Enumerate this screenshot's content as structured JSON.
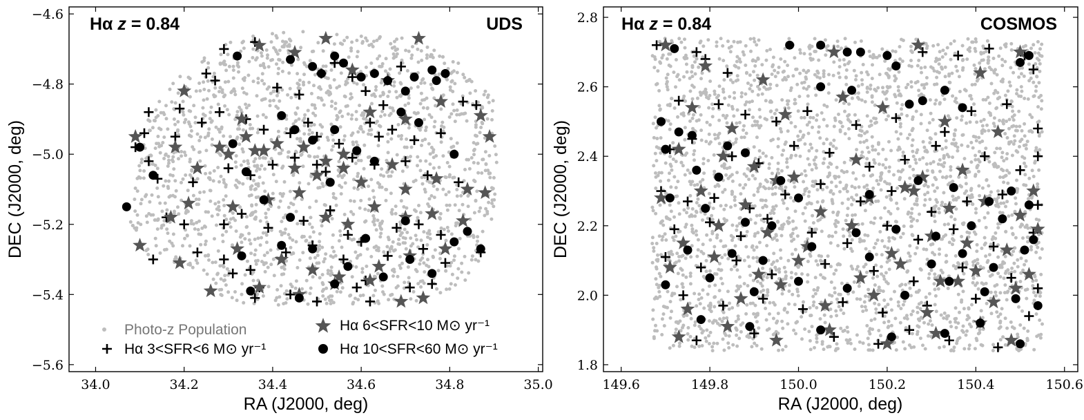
{
  "colors": {
    "photoz": "#bdbdbd",
    "star": "#555555",
    "black": "#000000"
  },
  "chart_data": [
    {
      "type": "scatter",
      "id": "uds",
      "field_label": "UDS",
      "title_prefix": "Hα ",
      "title_z": "z",
      "title_value": " = 0.84",
      "xlabel": "RA (J2000, deg)",
      "ylabel": "DEC (J2000, deg)",
      "xlim": [
        33.94,
        35.01
      ],
      "ylim": [
        -5.62,
        -4.58
      ],
      "xticks": [
        34.0,
        34.2,
        34.4,
        34.6,
        34.8,
        35.0
      ],
      "yticks": [
        -4.6,
        -4.8,
        -5.0,
        -5.2,
        -5.4,
        -5.6
      ],
      "xtick_labels": [
        "34.0",
        "34.2",
        "34.4",
        "34.6",
        "34.8",
        "35.0"
      ],
      "ytick_labels": [
        "−4.6",
        "−4.8",
        "−5.0",
        "−5.2",
        "−5.4",
        "−5.6"
      ],
      "footprint": {
        "ra": [
          34.08,
          34.12,
          34.2,
          34.3,
          34.4,
          34.55,
          34.7,
          34.82,
          34.9,
          34.91,
          34.89,
          34.85,
          34.78,
          34.7,
          34.55,
          34.4,
          34.27,
          34.26,
          34.2,
          34.1,
          34.07
        ],
        "dec": [
          -5.15,
          -4.88,
          -4.75,
          -4.68,
          -4.65,
          -4.65,
          -4.67,
          -4.73,
          -4.85,
          -5.05,
          -5.25,
          -5.35,
          -5.4,
          -5.43,
          -5.43,
          -5.43,
          -5.43,
          -5.35,
          -5.32,
          -5.28,
          -5.2
        ]
      },
      "photoz_count": 1800,
      "series": [
        {
          "name": "Hα 3<SFR<6 M⊙ yr⁻¹",
          "marker": "plus",
          "ra": [
            34.29,
            34.36,
            34.25,
            34.27,
            34.41,
            34.46,
            34.51,
            34.54,
            34.58,
            34.61,
            34.65,
            34.69,
            34.12,
            34.11,
            34.09,
            34.19,
            34.18,
            34.24,
            34.28,
            34.34,
            34.38,
            34.44,
            34.48,
            34.5,
            34.55,
            34.62,
            34.64,
            34.67,
            34.72,
            34.78,
            34.83,
            34.86,
            34.12,
            34.14,
            34.22,
            34.3,
            34.35,
            34.4,
            34.45,
            34.5,
            34.52,
            34.58,
            34.63,
            34.7,
            34.75,
            34.82,
            34.16,
            34.2,
            34.29,
            34.33,
            34.39,
            34.47,
            34.53,
            34.57,
            34.68,
            34.73,
            34.78,
            34.23,
            34.29,
            34.35,
            34.43,
            34.49,
            34.56,
            34.6,
            34.66,
            34.74,
            34.79,
            34.13,
            34.31,
            34.37,
            34.5,
            34.61,
            34.71,
            34.87,
            34.36,
            34.44,
            34.59,
            34.76,
            34.62
          ],
          "dec": [
            -4.7,
            -4.68,
            -4.77,
            -4.79,
            -4.81,
            -4.83,
            -4.77,
            -4.74,
            -4.78,
            -4.82,
            -4.86,
            -4.75,
            -4.88,
            -4.94,
            -4.98,
            -4.87,
            -4.95,
            -4.91,
            -4.88,
            -4.9,
            -4.93,
            -4.94,
            -4.91,
            -4.95,
            -4.97,
            -4.91,
            -4.95,
            -4.93,
            -4.96,
            -4.94,
            -4.85,
            -4.86,
            -5.02,
            -5.07,
            -5.08,
            -5.04,
            -5.06,
            -5.03,
            -5.01,
            -5.03,
            -5.05,
            -5.01,
            -5.03,
            -5.02,
            -5.06,
            -5.08,
            -5.18,
            -5.2,
            -5.2,
            -5.17,
            -5.21,
            -5.19,
            -5.16,
            -5.23,
            -5.21,
            -5.2,
            -5.23,
            -5.28,
            -5.3,
            -5.33,
            -5.28,
            -5.26,
            -5.3,
            -5.25,
            -5.29,
            -5.27,
            -5.31,
            -5.3,
            -5.34,
            -5.38,
            -5.42,
            -5.36,
            -5.38,
            -5.28,
            -5.41,
            -5.4,
            -5.38,
            -5.37,
            -5.42
          ]
        },
        {
          "name": "Hα 6<SFR<10 M⊙ yr⁻¹",
          "marker": "star",
          "ra": [
            34.37,
            34.45,
            34.52,
            34.73,
            34.66,
            34.58,
            34.2,
            34.33,
            34.28,
            34.34,
            34.36,
            34.41,
            34.47,
            34.52,
            34.56,
            34.62,
            34.7,
            34.78,
            34.87,
            34.89,
            34.09,
            34.18,
            34.23,
            34.3,
            34.38,
            34.45,
            34.5,
            34.6,
            34.67,
            34.77,
            34.84,
            34.1,
            34.17,
            34.21,
            34.31,
            34.39,
            34.46,
            34.52,
            34.57,
            34.63,
            34.7,
            34.76,
            34.83,
            34.88,
            34.19,
            34.32,
            34.42,
            34.49,
            34.55,
            34.64,
            34.71,
            34.79,
            34.26,
            34.37,
            34.46,
            34.54,
            34.62,
            34.69,
            34.74,
            34.56,
            34.7
          ],
          "dec": [
            -4.69,
            -4.71,
            -4.67,
            -4.67,
            -4.79,
            -4.76,
            -4.82,
            -4.9,
            -4.98,
            -4.95,
            -4.99,
            -4.97,
            -4.98,
            -5.02,
            -5.0,
            -4.88,
            -4.9,
            -4.85,
            -4.89,
            -4.95,
            -4.95,
            -4.98,
            -5.04,
            -5.0,
            -4.99,
            -5.04,
            -5.06,
            -5.08,
            -5.03,
            -5.07,
            -5.1,
            -5.26,
            -5.18,
            -5.14,
            -5.15,
            -5.13,
            -5.11,
            -5.18,
            -5.2,
            -5.15,
            -5.1,
            -5.17,
            -5.19,
            -5.11,
            -5.31,
            -5.27,
            -5.3,
            -5.33,
            -5.35,
            -5.32,
            -5.29,
            -5.27,
            -5.39,
            -5.38,
            -5.4,
            -5.37,
            -5.36,
            -5.42,
            -5.41,
            -5.04,
            -5.18
          ]
        },
        {
          "name": "Hα 10<SFR<60 M⊙ yr⁻¹",
          "marker": "circle",
          "ra": [
            34.32,
            34.44,
            34.49,
            34.51,
            34.54,
            34.56,
            34.6,
            34.63,
            34.66,
            34.7,
            34.72,
            34.76,
            34.77,
            34.79,
            34.1,
            34.13,
            34.07,
            34.31,
            34.34,
            34.42,
            34.45,
            34.49,
            34.54,
            34.59,
            34.63,
            34.69,
            34.73,
            34.81,
            34.38,
            34.44,
            34.53,
            34.61,
            34.7,
            34.84,
            34.87,
            34.33,
            34.42,
            34.49,
            34.57,
            34.65,
            34.71,
            34.76,
            34.81,
            34.35,
            34.46,
            34.54
          ],
          "dec": [
            -4.72,
            -4.73,
            -4.75,
            -4.77,
            -4.72,
            -4.74,
            -4.78,
            -4.77,
            -4.79,
            -4.82,
            -4.78,
            -4.76,
            -4.79,
            -4.77,
            -4.98,
            -5.06,
            -5.15,
            -4.97,
            -5.05,
            -4.89,
            -4.93,
            -4.96,
            -4.93,
            -4.99,
            -5.02,
            -4.88,
            -4.91,
            -5.0,
            -5.13,
            -5.18,
            -5.08,
            -5.24,
            -5.19,
            -5.22,
            -5.27,
            -5.29,
            -5.26,
            -5.27,
            -5.32,
            -5.35,
            -5.3,
            -5.34,
            -5.25,
            -5.39,
            -5.41,
            -5.37
          ]
        },
        {
          "name": "Photo-z Population",
          "marker": "dot"
        }
      ]
    },
    {
      "type": "scatter",
      "id": "cosmos",
      "field_label": "COSMOS",
      "title_prefix": "Hα ",
      "title_z": "z",
      "title_value": " = 0.84",
      "xlabel": "RA (J2000, deg)",
      "ylabel": "DEC (J2000, deg)",
      "xlim": [
        149.56,
        150.63
      ],
      "ylim": [
        1.78,
        2.83
      ],
      "xticks": [
        149.6,
        149.8,
        150.0,
        150.2,
        150.4,
        150.6
      ],
      "yticks": [
        1.8,
        2.0,
        2.2,
        2.4,
        2.6,
        2.8
      ],
      "xtick_labels": [
        "149.6",
        "149.8",
        "150.0",
        "150.2",
        "150.4",
        "150.6"
      ],
      "ytick_labels": [
        "1.8",
        "2.0",
        "2.2",
        "2.4",
        "2.6",
        "2.8"
      ],
      "footprint": {
        "ra": [
          149.67,
          150.55,
          150.55,
          149.67
        ],
        "dec": [
          1.84,
          1.84,
          2.74,
          2.74
        ]
      },
      "photoz_count": 2800,
      "series": [
        {
          "name": "Hα 3<SFR<6 M⊙ yr⁻¹",
          "marker": "plus",
          "ra": [
            149.68,
            149.77,
            149.79,
            149.84,
            150.28,
            150.36,
            150.43,
            150.51,
            150.53,
            149.73,
            149.82,
            149.88,
            149.95,
            150.02,
            150.13,
            150.22,
            150.33,
            150.39,
            150.47,
            150.54,
            149.71,
            149.76,
            149.85,
            149.91,
            149.99,
            150.07,
            150.16,
            150.24,
            150.31,
            150.42,
            150.5,
            150.54,
            149.69,
            149.75,
            149.81,
            149.89,
            149.97,
            150.05,
            150.14,
            150.21,
            150.3,
            150.38,
            150.46,
            150.54,
            149.72,
            149.8,
            149.87,
            149.93,
            150.03,
            150.11,
            150.2,
            150.27,
            150.35,
            150.44,
            150.53,
            149.7,
            149.78,
            149.86,
            149.94,
            150.06,
            150.17,
            150.26,
            150.37,
            150.48,
            150.54,
            149.74,
            149.83,
            149.92,
            150.01,
            150.1,
            150.19,
            150.29,
            150.4,
            150.52,
            149.77,
            149.9,
            150.08,
            150.18,
            150.25,
            150.34,
            150.45
          ],
          "dec": [
            2.72,
            2.7,
            2.68,
            2.64,
            2.7,
            2.69,
            2.71,
            2.69,
            2.65,
            2.56,
            2.55,
            2.52,
            2.5,
            2.53,
            2.49,
            2.51,
            2.47,
            2.53,
            2.55,
            2.48,
            2.42,
            2.45,
            2.4,
            2.38,
            2.43,
            2.41,
            2.37,
            2.39,
            2.43,
            2.4,
            2.36,
            2.4,
            2.3,
            2.27,
            2.28,
            2.25,
            2.29,
            2.32,
            2.27,
            2.3,
            2.24,
            2.27,
            2.29,
            2.26,
            2.19,
            2.21,
            2.17,
            2.22,
            2.18,
            2.15,
            2.2,
            2.16,
            2.19,
            2.14,
            2.18,
            2.11,
            2.08,
            2.1,
            2.06,
            2.09,
            2.07,
            2.04,
            2.08,
            2.05,
            2.02,
            2.0,
            1.97,
            1.99,
            1.96,
            1.98,
            1.95,
            1.97,
            1.99,
            1.94,
            1.87,
            1.89,
            1.88,
            1.86,
            1.9,
            1.87,
            1.85
          ]
        },
        {
          "name": "Hα 6<SFR<10 M⊙ yr⁻¹",
          "marker": "star",
          "ra": [
            149.7,
            149.79,
            149.92,
            150.08,
            150.27,
            150.41,
            150.5,
            149.76,
            149.85,
            149.97,
            150.1,
            150.19,
            150.33,
            150.45,
            149.73,
            149.83,
            149.9,
            149.99,
            150.13,
            150.24,
            150.28,
            150.37,
            150.53,
            149.69,
            149.78,
            149.88,
            149.95,
            150.05,
            150.16,
            150.26,
            150.34,
            150.42,
            150.5,
            149.74,
            149.82,
            149.93,
            150.02,
            150.12,
            150.21,
            150.3,
            150.38,
            150.47,
            150.54,
            149.71,
            149.81,
            149.91,
            150.0,
            150.14,
            150.23,
            150.32,
            150.4,
            150.49,
            149.75,
            149.87,
            149.96,
            150.06,
            150.17,
            150.29,
            150.36,
            150.44,
            150.52,
            149.73,
            149.84,
            149.95,
            150.07,
            150.2,
            150.31,
            150.41,
            150.48
          ],
          "dec": [
            2.72,
            2.66,
            2.62,
            2.7,
            2.72,
            2.64,
            2.7,
            2.54,
            2.48,
            2.52,
            2.57,
            2.54,
            2.5,
            2.47,
            2.42,
            2.4,
            2.37,
            2.34,
            2.39,
            2.31,
            2.34,
            2.36,
            2.3,
            2.28,
            2.3,
            2.26,
            2.33,
            2.24,
            2.28,
            2.3,
            2.25,
            2.27,
            2.23,
            2.15,
            2.2,
            2.18,
            2.14,
            2.2,
            2.12,
            2.17,
            2.15,
            2.13,
            2.19,
            2.08,
            2.11,
            2.06,
            2.1,
            2.05,
            2.09,
            2.04,
            2.07,
            2.02,
            1.96,
            1.99,
            2.03,
            1.97,
            2.0,
            1.95,
            2.04,
            1.98,
            2.06,
            1.88,
            1.91,
            1.87,
            1.9,
            1.86,
            1.89,
            1.92,
            1.87
          ]
        },
        {
          "name": "Hα 10<SFR<60 M⊙ yr⁻¹",
          "marker": "circle",
          "ra": [
            149.72,
            149.98,
            150.05,
            150.11,
            150.14,
            150.2,
            150.22,
            150.5,
            150.52,
            150.05,
            150.12,
            150.25,
            149.69,
            149.73,
            149.76,
            149.84,
            149.88,
            150.28,
            150.33,
            150.37,
            149.7,
            149.77,
            149.82,
            149.96,
            150.0,
            150.16,
            150.27,
            150.35,
            150.43,
            150.48,
            150.52,
            149.71,
            149.79,
            149.88,
            149.94,
            150.13,
            150.22,
            150.31,
            150.39,
            150.46,
            150.53,
            149.75,
            149.85,
            149.92,
            150.03,
            150.16,
            150.3,
            150.37,
            150.44,
            150.51,
            149.7,
            149.8,
            149.9,
            150.0,
            150.11,
            150.24,
            150.34,
            150.42,
            150.49,
            150.54,
            149.78,
            149.89,
            150.05,
            150.21,
            150.33,
            150.41,
            150.5
          ],
          "dec": [
            2.71,
            2.72,
            2.72,
            2.7,
            2.7,
            2.69,
            2.66,
            2.67,
            2.69,
            2.6,
            2.59,
            2.55,
            2.5,
            2.47,
            2.46,
            2.43,
            2.41,
            2.56,
            2.59,
            2.54,
            2.42,
            2.36,
            2.34,
            2.33,
            2.28,
            2.29,
            2.33,
            2.31,
            2.27,
            2.3,
            2.26,
            2.28,
            2.25,
            2.21,
            2.2,
            2.18,
            2.19,
            2.17,
            2.2,
            2.22,
            2.16,
            2.13,
            2.12,
            2.1,
            2.14,
            2.11,
            2.09,
            2.12,
            2.08,
            2.13,
            2.03,
            2.05,
            2.01,
            2.04,
            2.02,
            2.0,
            2.04,
            2.01,
            1.99,
            1.97,
            1.93,
            1.91,
            1.9,
            1.88,
            1.89,
            1.92,
            1.86
          ]
        }
      ]
    }
  ]
}
